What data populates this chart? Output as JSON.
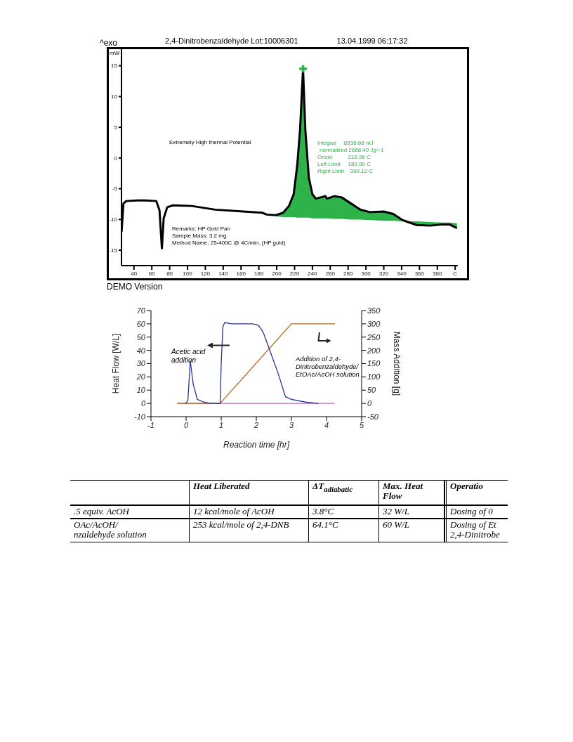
{
  "chart_data": [
    {
      "type": "line",
      "title": "2,4-Dinitrobenzaldehyde Lot:10006301",
      "subtitle": "13.04.1999 06:17:32",
      "ylabel": "mW",
      "xlim": [
        26,
        403
      ],
      "xticks": [
        40,
        60,
        80,
        100,
        120,
        140,
        160,
        180,
        200,
        220,
        240,
        260,
        280,
        300,
        320,
        340,
        360,
        380,
        {
          "value": 400,
          "label": "C"
        }
      ],
      "ylim": [
        -17.5,
        17.7
      ],
      "yticks": [
        -15,
        -10,
        -5,
        0,
        5,
        10,
        15
      ],
      "series": [
        {
          "type": "line",
          "color": "#000000",
          "x": [
            26.1,
            28.2,
            31.3,
            44.5,
            52.3,
            65,
            68.6,
            71.3,
            73.3,
            77.3,
            83.8,
            104.8,
            131,
            162.6,
            183.6,
            188.8,
            199.3,
            207.2,
            213.7,
            219,
            222.9,
            226.1,
            229.5,
            232.1,
            236,
            240,
            243.8,
            254.4,
            256.4,
            264.8,
            272.7,
            283.3,
            293.8,
            304.3,
            320,
            330.6,
            341,
            356.8,
            372.5,
            385.7,
            393.5,
            402
          ],
          "values": [
            -12,
            -7.4,
            -7,
            -6.9,
            -6.9,
            -7,
            -8.5,
            -14.7,
            -9.8,
            -8,
            -7.7,
            -7.8,
            -8.4,
            -8.7,
            -8.9,
            -9.2,
            -9.3,
            -8.9,
            -7.8,
            -5.9,
            -1.3,
            4.5,
            14.5,
            4.5,
            -3.2,
            -5.9,
            -6.6,
            -6.2,
            -6.6,
            -6.2,
            -6.4,
            -7.4,
            -8.4,
            -8.8,
            -8.7,
            -9.1,
            -10.1,
            -10.9,
            -11,
            -10.8,
            -10.8,
            -11.4
          ],
          "upper": [
            null,
            null,
            null,
            null,
            null,
            null,
            null,
            null,
            null,
            null,
            null,
            null,
            null,
            null,
            null,
            null,
            -9.3,
            -8.9,
            -7.8,
            -5.9,
            -1.3,
            4.5,
            14.5,
            4.5,
            -3.2,
            -5.9,
            -6.6,
            -6.2,
            -6.6,
            -6.2,
            -6.4,
            -7.4,
            -8.4,
            -8.8,
            -8.7,
            -9.1,
            -10.1,
            -10.9,
            -11,
            -10.8,
            -10.8,
            -11.4
          ],
          "lower": [
            null,
            null,
            null,
            null,
            null,
            null,
            null,
            null,
            null,
            null,
            null,
            null,
            null,
            null,
            null,
            null,
            -9.5,
            -9.6,
            -9.6,
            -9.6,
            -9.7,
            -9.7,
            -9.7,
            -9.7,
            -9.7,
            -9.8,
            -9.8,
            -9.8,
            -9.8,
            -9.9,
            -9.9,
            -10,
            -10,
            -10.1,
            -10.2,
            -10.2,
            -10.3,
            -10.3,
            -10.4,
            -10.5,
            -10.5,
            -10.6
          ]
        },
        {
          "type": "scatter",
          "color": "#2db34a",
          "marker": "cross",
          "x": [
            229.5
          ],
          "values": [
            14.5
          ]
        }
      ],
      "annotations": [
        "^exo",
        "DEMO Version",
        "Extremely High thermal Potential",
        "Remarks: HP Gold Pan",
        "Sample Mass: 3.2 mg",
        "Method Name: 25-400C @ 4C/min. (HP gold)",
        "Integral     8538.88 mJ",
        "normalized 2668.40 Jg^-1",
        "Onset          218.96 C",
        "Left Limit     189.90 C",
        "Right Limit    399.12 C"
      ]
    },
    {
      "type": "line",
      "xlabel": "Reaction time [hr]",
      "ylabel": "Heat Flow [W/L]",
      "y2label": "Mass Addition [g]",
      "xlim": [
        -1,
        5
      ],
      "xticks": [
        -1,
        0,
        1,
        2,
        3,
        4,
        5
      ],
      "ylim": [
        -10,
        70
      ],
      "yticks": [
        -10,
        0,
        10,
        20,
        30,
        40,
        50,
        60,
        70
      ],
      "y2lim": [
        -50,
        350
      ],
      "y2ticks": [
        -50,
        0,
        50,
        100,
        150,
        200,
        250,
        300,
        350
      ],
      "series": [
        {
          "type": "line",
          "color": "#c06bb0",
          "x": [
            -0.25,
            4.23
          ],
          "values": [
            0,
            0
          ]
        },
        {
          "type": "line",
          "color": "#b5651d",
          "axis": "y2",
          "x": [
            -0.25,
            0.97,
            3.0,
            4.24
          ],
          "values": [
            0,
            0,
            300,
            300
          ]
        },
        {
          "type": "line",
          "color": "#283593",
          "x": [
            -0.02,
            0.05,
            0.12,
            0.2,
            0.32,
            0.5,
            0.7,
            0.97,
            1.0,
            1.05,
            1.1,
            1.3,
            1.6,
            1.9,
            2.06,
            2.19,
            2.33,
            2.63,
            2.83,
            3.0,
            3.4,
            3.77
          ],
          "values": [
            0,
            2,
            32,
            15,
            3,
            1,
            0,
            0,
            30,
            58,
            61,
            60,
            60,
            60,
            59,
            54,
            44,
            22,
            5,
            3,
            1,
            0
          ]
        }
      ],
      "annotations": [
        "Acetic acid addition",
        "Addition of 2,4-Dinitrobenzaldehyde/ EtOAc/AcOH solution"
      ]
    },
    {
      "type": "other",
      "categories": [
        null,
        "Heat Liberated",
        "ΔT$_{adiabatic}$",
        "Max. Heat Flow",
        "Operatio"
      ],
      "annotations": [
        ".5 equiv. AcOH",
        "12 kcal/mole of AcOH",
        "3.8°C",
        "32 W/L",
        "Dosing of 0",
        "OAc/AcOH/\nnzaldehyde solution",
        "253 kcal/mole of 2,4-DNB",
        "64.1°C",
        "60 W/L",
        "Dosing of Et\n2,4-Dinitrobe"
      ]
    }
  ]
}
